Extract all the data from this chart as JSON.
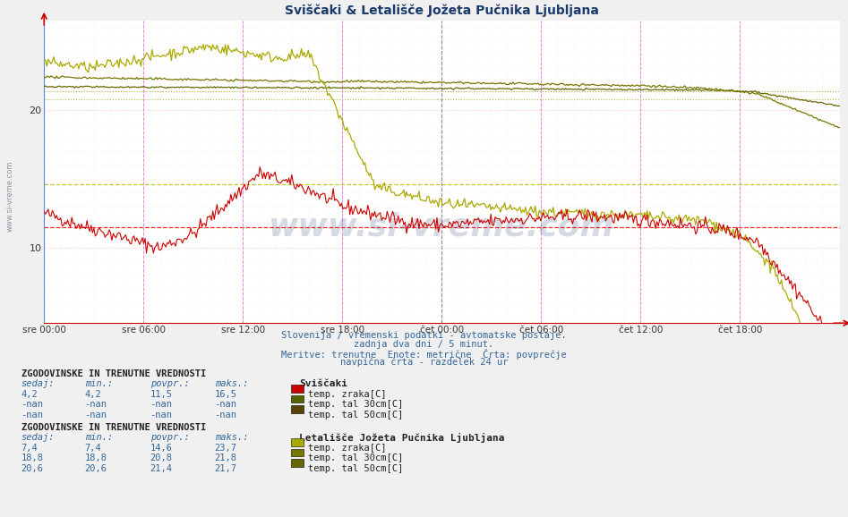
{
  "title": "Sviščaki & Letališče Jožeta Pučnika Ljubljana",
  "subtitle1": "Slovenija / vremenski podatki - avtomatske postaje.",
  "subtitle2": "zadnja dva dni / 5 minut.",
  "subtitle3": "Meritve: trenutne  Enote: metrične  Črta: povprečje",
  "subtitle4": "navpična črta - razdelek 24 ur",
  "xlabel_ticks": [
    "sre 00:00",
    "sre 06:00",
    "sre 12:00",
    "sre 18:00",
    "čet 00:00",
    "čet 06:00",
    "čet 12:00",
    "čet 18:00"
  ],
  "ymin": 4.5,
  "ymax": 26.5,
  "yticks": [
    10,
    20
  ],
  "bg_color": "#f0f0f0",
  "plot_bg_color": "#ffffff",
  "watermark_text": "www.si-vreme.com",
  "watermark_color": "#1a3a6b",
  "station1_name": "Sviščaki",
  "station2_name": "Letališče Jožeta Pučnika Ljubljana",
  "color_sv_air": "#cc0000",
  "color_sv_30": "#556600",
  "color_sv_50": "#554400",
  "color_lj_air": "#aaaa00",
  "color_lj_30": "#777700",
  "color_lj_50": "#666600",
  "color_grid_major_v": "#ffaaaa",
  "color_grid_minor_v": "#ffdddd",
  "color_grid_h": "#ffdddd",
  "color_grid_major_h": "#ffaaaa",
  "color_vline_6h": "#dd88dd",
  "color_vline_midnight": "#aaaaaa",
  "color_hline_sv_mean": "#ff0000",
  "color_hline_lj_mean": "#bbbb00",
  "color_hline_lj30_mean": "#999900",
  "color_hline_lj50_mean": "#888800",
  "sv_air_mean": 11.5,
  "lj_air_mean": 14.6,
  "lj_30_mean": 20.8,
  "lj_50_mean": 21.4,
  "legend1_labels": [
    "temp. zraka[C]",
    "temp. tal 30cm[C]",
    "temp. tal 50cm[C]"
  ],
  "legend2_labels": [
    "temp. zraka[C]",
    "temp. tal 30cm[C]",
    "temp. tal 50cm[C]"
  ],
  "table1_rows": [
    [
      "4,2",
      "4,2",
      "11,5",
      "16,5"
    ],
    [
      "-nan",
      "-nan",
      "-nan",
      "-nan"
    ],
    [
      "-nan",
      "-nan",
      "-nan",
      "-nan"
    ]
  ],
  "table2_rows": [
    [
      "7,4",
      "7,4",
      "14,6",
      "23,7"
    ],
    [
      "18,8",
      "18,8",
      "20,8",
      "21,8"
    ],
    [
      "20,6",
      "20,6",
      "21,4",
      "21,7"
    ]
  ],
  "table_header": [
    "sedaj:",
    "min.:",
    "povpr.:",
    "maks.:"
  ],
  "section_header": "ZGODOVINSKE IN TRENUTNE VREDNOSTI",
  "n_points": 576,
  "total_hours": 48
}
